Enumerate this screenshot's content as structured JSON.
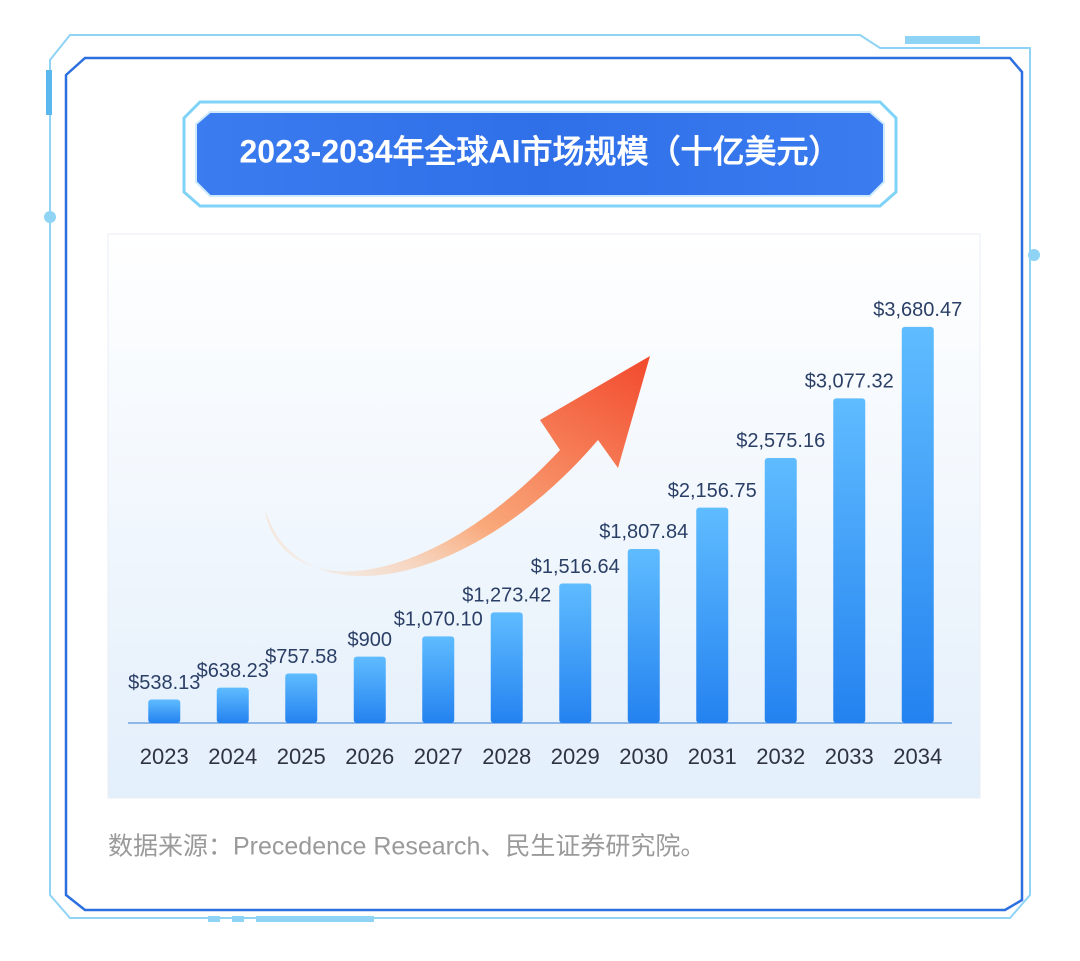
{
  "chart_data": {
    "type": "bar",
    "title": "2023-2034年全球AI市场规模（十亿美元）",
    "source": "数据来源：Precedence Research、民生证券研究院。",
    "categories": [
      "2023",
      "2024",
      "2025",
      "2026",
      "2027",
      "2028",
      "2029",
      "2030",
      "2031",
      "2032",
      "2033",
      "2034"
    ],
    "values": [
      538.13,
      638.23,
      757.58,
      900,
      1070.1,
      1273.42,
      1516.64,
      1807.84,
      2156.75,
      2575.16,
      3077.32,
      3680.47
    ],
    "value_labels": [
      "$538.13",
      "$638.23",
      "$757.58",
      "$900",
      "$1,070.10",
      "$1,273.42",
      "$1,516.64",
      "$1,807.84",
      "$2,156.75",
      "$2,575.16",
      "$3,077.32",
      "$3,680.47"
    ],
    "color": "#2482f0",
    "ylim": [
      340,
      4000
    ]
  }
}
